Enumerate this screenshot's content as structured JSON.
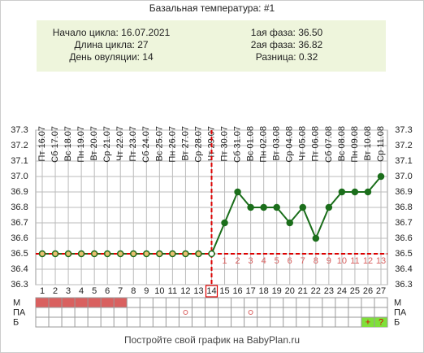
{
  "chart_data": {
    "type": "line",
    "title": "Базальная температура: #1",
    "info_left": [
      "Начало цикла: 16.07.2021",
      "Длина цикла: 27",
      "День овуляции: 14"
    ],
    "info_right": [
      "1ая фаза: 36.50",
      "2ая фаза: 36.82",
      "Разница: 0.32"
    ],
    "dates": [
      "Пт 16.07",
      "Сб 17.07",
      "Вс 18.07",
      "Пн 19.07",
      "Вт 20.07",
      "Ср 21.07",
      "Чт 22.07",
      "Пт 23.07",
      "Сб 24.07",
      "Вс 25.07",
      "Пн 26.07",
      "Вт 27.07",
      "Ср 28.07",
      "Чт 29.07",
      "Пт 30.07",
      "Сб 31.07",
      "Вс 01.08",
      "Пн 02.08",
      "Вт 03.08",
      "Ср 04.08",
      "Чт 05.08",
      "Пт 06.08",
      "Сб 07.08",
      "Вс 08.08",
      "Пн 09.08",
      "Вт 10.08",
      "Ср 11.08"
    ],
    "x": [
      1,
      2,
      3,
      4,
      5,
      6,
      7,
      8,
      9,
      10,
      11,
      12,
      13,
      14,
      15,
      16,
      17,
      18,
      19,
      20,
      21,
      22,
      23,
      24,
      25,
      26,
      27
    ],
    "xlim": [
      1,
      27
    ],
    "series": [
      {
        "color": "#1b6e1b",
        "values": [
          36.5,
          36.5,
          36.5,
          36.5,
          36.5,
          36.5,
          36.5,
          36.5,
          36.5,
          36.5,
          36.5,
          36.5,
          36.5,
          36.5,
          36.7,
          36.9,
          36.8,
          36.8,
          36.8,
          36.7,
          36.8,
          36.6,
          36.8,
          36.9,
          36.9,
          36.9,
          37.0
        ]
      }
    ],
    "ylim": [
      36.3,
      37.3
    ],
    "yticks": [
      36.3,
      36.4,
      36.5,
      36.6,
      36.7,
      36.8,
      36.9,
      {
        "value": 37,
        "label": "37.0"
      },
      37.1,
      37.2,
      37.3
    ],
    "grid": true,
    "coverline": 36.5,
    "ovulation_day": 14,
    "phase2_days": [
      1,
      2,
      3,
      4,
      5,
      6,
      7,
      8,
      9,
      10,
      11,
      12,
      13
    ],
    "phase2_color": "#d9605f",
    "rows": [
      "М",
      "ПА",
      "Б"
    ],
    "menstruation_days": [
      1,
      2,
      3,
      4,
      5,
      6,
      7
    ],
    "menstruation_color": "#d9605f",
    "pa_days": [
      12,
      17
    ],
    "b_marks": [
      {
        "day": 26,
        "label": "+"
      },
      {
        "day": 27,
        "label": "?"
      }
    ],
    "b_color": "#7fe03a",
    "footer": "Постройте свой график на BabyPlan.ru"
  }
}
